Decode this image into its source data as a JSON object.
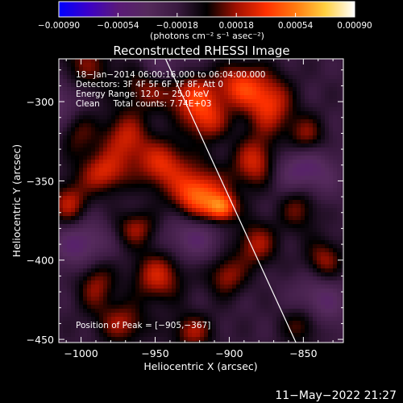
{
  "chart_data": {
    "type": "heatmap",
    "title": "Reconstructed RHESSI Image",
    "xlabel": "Heliocentric X (arcsec)",
    "ylabel": "Heliocentric Y (arcsec)",
    "xlim": [
      -1015,
      -823
    ],
    "ylim": [
      -452,
      -273
    ],
    "x_ticks": [
      -1000,
      -950,
      -900,
      -850
    ],
    "y_ticks": [
      -450,
      -400,
      -350,
      -300
    ],
    "x_tick_labels": [
      "−1000",
      "−950",
      "−900",
      "−850"
    ],
    "y_tick_labels": [
      "−450",
      "−400",
      "−350",
      "−300"
    ],
    "colorbar": {
      "min": -0.0009,
      "max": 0.0009,
      "ticks": [
        -0.0009,
        -0.00054,
        -0.00018,
        0.00018,
        0.00054,
        0.0009
      ],
      "tick_labels": [
        "−0.00090",
        "−0.00054",
        "−0.00018",
        "0.00018",
        "0.00054",
        "0.00090"
      ],
      "unit_label": "(photons cm⁻² s⁻¹ asec⁻²)",
      "colormap": [
        "#0000ff",
        "#3c00c8",
        "#5a1a78",
        "#552a5c",
        "#3a1a40",
        "#000000",
        "#a01000",
        "#ff3000",
        "#ff7a10",
        "#ffd040",
        "#ffffff"
      ]
    },
    "annotations": [
      "18−Jan−2014 06:00:16.000 to 06:04:00.000",
      "Detectors: 3F 4F 5F 6F 7F 8F, Att 0",
      "Energy Range: 12.0 − 25.0 keV",
      "Clean     Total counts: 7.74E+03"
    ],
    "peak_label": "Position of Peak = [−905,−367]",
    "peak": [
      -905,
      -367
    ],
    "peak_value": 0.0009,
    "limb": [
      [
        -943,
        -273
      ],
      [
        -855,
        -452
      ]
    ],
    "emission_blobs": [
      {
        "x": -1000,
        "y": -280,
        "sx": 14,
        "sy": 14,
        "a": 0.00038
      },
      {
        "x": -955,
        "y": -290,
        "sx": 12,
        "sy": 10,
        "a": 0.00034
      },
      {
        "x": -925,
        "y": -296,
        "sx": 12,
        "sy": 10,
        "a": 0.00046
      },
      {
        "x": -893,
        "y": -290,
        "sx": 11,
        "sy": 10,
        "a": 0.00046
      },
      {
        "x": -873,
        "y": -302,
        "sx": 11,
        "sy": 13,
        "a": 0.00048
      },
      {
        "x": -1003,
        "y": -318,
        "sx": 10,
        "sy": 12,
        "a": 0.00038
      },
      {
        "x": -970,
        "y": -323,
        "sx": 11,
        "sy": 12,
        "a": 0.0004
      },
      {
        "x": -915,
        "y": -312,
        "sx": 10,
        "sy": 9,
        "a": 0.0004
      },
      {
        "x": -985,
        "y": -345,
        "sx": 11,
        "sy": 9,
        "a": 0.00042
      },
      {
        "x": -945,
        "y": -340,
        "sx": 12,
        "sy": 11,
        "a": 0.00044
      },
      {
        "x": -882,
        "y": -338,
        "sx": 10,
        "sy": 11,
        "a": 0.00044
      },
      {
        "x": -848,
        "y": -322,
        "sx": 9,
        "sy": 9,
        "a": 0.00036
      },
      {
        "x": -1008,
        "y": -365,
        "sx": 9,
        "sy": 10,
        "a": 0.0004
      },
      {
        "x": -922,
        "y": -360,
        "sx": 11,
        "sy": 10,
        "a": 0.00048
      },
      {
        "x": -853,
        "y": -365,
        "sx": 10,
        "sy": 11,
        "a": 0.00036
      },
      {
        "x": -963,
        "y": -380,
        "sx": 10,
        "sy": 8,
        "a": 0.00034
      },
      {
        "x": -882,
        "y": -390,
        "sx": 10,
        "sy": 10,
        "a": 0.00036
      },
      {
        "x": -948,
        "y": -410,
        "sx": 12,
        "sy": 11,
        "a": 0.00042
      },
      {
        "x": -990,
        "y": -415,
        "sx": 9,
        "sy": 12,
        "a": 0.00034
      },
      {
        "x": -902,
        "y": -410,
        "sx": 9,
        "sy": 9,
        "a": 0.00034
      },
      {
        "x": -836,
        "y": -400,
        "sx": 9,
        "sy": 9,
        "a": 0.00034
      },
      {
        "x": -972,
        "y": -440,
        "sx": 11,
        "sy": 9,
        "a": 0.00034
      },
      {
        "x": -925,
        "y": -445,
        "sx": 10,
        "sy": 8,
        "a": 0.00034
      },
      {
        "x": -850,
        "y": -440,
        "sx": 10,
        "sy": 9,
        "a": 0.00034
      },
      {
        "x": -905,
        "y": -367,
        "sx": 7,
        "sy": 6,
        "a": 0.00055
      },
      {
        "x": -915,
        "y": -355,
        "sx": 16,
        "sy": 14,
        "a": 0.0002
      }
    ],
    "negative_regions": [
      {
        "x": -1010,
        "y": -300,
        "sx": 14,
        "sy": 18,
        "a": -0.00036
      },
      {
        "x": -850,
        "y": -345,
        "sx": 15,
        "sy": 14,
        "a": -0.00036
      },
      {
        "x": -1000,
        "y": -390,
        "sx": 14,
        "sy": 12,
        "a": -0.00032
      },
      {
        "x": -925,
        "y": -385,
        "sx": 14,
        "sy": 11,
        "a": -0.00028
      },
      {
        "x": -840,
        "y": -428,
        "sx": 13,
        "sy": 13,
        "a": -0.0003
      },
      {
        "x": -945,
        "y": -280,
        "sx": 12,
        "sy": 9,
        "a": -0.00026
      }
    ]
  },
  "timestamp": "11−May−2022 21:27"
}
